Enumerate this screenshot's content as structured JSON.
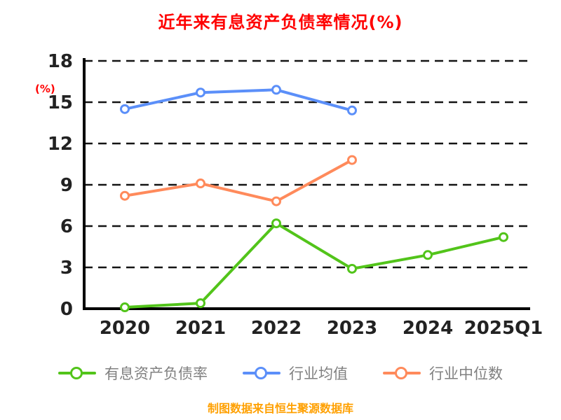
{
  "title": "近年来有息资产负债率情况(%)",
  "y_axis_label": "(%)",
  "footer_note": "制图数据来自恒生聚源数据库",
  "colors": {
    "title": "#ff0000",
    "axis": "#000000",
    "tick_label": "#222222",
    "grid": "#141414",
    "legend_text": "#808080",
    "footer": "#ffa000",
    "series_green": "#52c41a",
    "series_blue": "#5b8ff9",
    "series_orange": "#ff8a5b"
  },
  "chart_data": {
    "type": "line",
    "title": "近年来有息资产负债率情况(%)",
    "xlabel": "",
    "ylabel": "(%)",
    "categories": [
      "2020",
      "2021",
      "2022",
      "2023",
      "2024",
      "2025Q1"
    ],
    "series": [
      {
        "name": "有息资产负债率",
        "color": "#52c41a",
        "values": [
          0.1,
          0.4,
          6.2,
          2.9,
          3.9,
          5.2
        ]
      },
      {
        "name": "行业均值",
        "color": "#5b8ff9",
        "values": [
          14.5,
          15.7,
          15.9,
          14.4,
          null,
          null
        ]
      },
      {
        "name": "行业中位数",
        "color": "#ff8a5b",
        "values": [
          8.2,
          9.1,
          7.8,
          10.8,
          null,
          null
        ]
      }
    ],
    "yticks": [
      0,
      3,
      6,
      9,
      12,
      15,
      18
    ],
    "ylim": [
      0,
      18
    ],
    "grid": "horizontal-dashed",
    "legend_position": "bottom",
    "marker": "circle-white-fill"
  }
}
